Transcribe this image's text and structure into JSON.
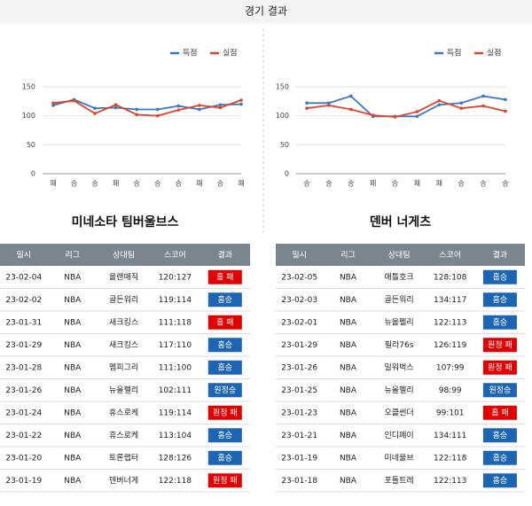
{
  "header": {
    "title": "경기 결과"
  },
  "chart_data": [
    {
      "type": "line",
      "categories": [
        "패",
        "승",
        "승",
        "패",
        "승",
        "승",
        "승",
        "패",
        "승",
        "패"
      ],
      "series": [
        {
          "name": "득점",
          "color": "#3a78c2",
          "values": [
            118,
            128,
            113,
            114,
            111,
            111,
            117,
            111,
            119,
            120
          ]
        },
        {
          "name": "실점",
          "color": "#e0442c",
          "values": [
            122,
            126,
            104,
            119,
            102,
            100,
            110,
            118,
            114,
            127
          ]
        }
      ],
      "ylim": [
        0,
        150
      ],
      "yticks": [
        0,
        50,
        100,
        150
      ],
      "grid": true,
      "legend": "top-right"
    },
    {
      "type": "line",
      "categories": [
        "승",
        "승",
        "승",
        "패",
        "승",
        "패",
        "패",
        "승",
        "승",
        "승"
      ],
      "series": [
        {
          "name": "득점",
          "color": "#3a78c2",
          "values": [
            122,
            122,
            134,
            99,
            99,
            99,
            119,
            122,
            134,
            128
          ]
        },
        {
          "name": "실점",
          "color": "#e0442c",
          "values": [
            113,
            118,
            111,
            101,
            98,
            107,
            126,
            113,
            117,
            108
          ]
        }
      ],
      "ylim": [
        0,
        150
      ],
      "yticks": [
        0,
        50,
        100,
        150
      ],
      "grid": true,
      "legend": "top-right"
    }
  ],
  "teams": [
    {
      "name": "미네소타 팀버울브스",
      "table": {
        "columns": [
          "일시",
          "리그",
          "상대팀",
          "스코어",
          "결과"
        ],
        "rows": [
          [
            "23-02-04",
            "NBA",
            "올랜매직",
            "120:127",
            "홈 패"
          ],
          [
            "23-02-02",
            "NBA",
            "골든워리",
            "119:114",
            "홈승"
          ],
          [
            "23-01-31",
            "NBA",
            "새크킹스",
            "111:118",
            "홈 패"
          ],
          [
            "23-01-29",
            "NBA",
            "새크킹스",
            "117:110",
            "홈승"
          ],
          [
            "23-01-28",
            "NBA",
            "멤피그리",
            "111:100",
            "홈승"
          ],
          [
            "23-01-26",
            "NBA",
            "뉴올펠리",
            "102:111",
            "원정승"
          ],
          [
            "23-01-24",
            "NBA",
            "휴스로케",
            "119:114",
            "원정 패"
          ],
          [
            "23-01-22",
            "NBA",
            "휴스로케",
            "113:104",
            "홈승"
          ],
          [
            "23-01-20",
            "NBA",
            "토론랩터",
            "128:126",
            "홈승"
          ],
          [
            "23-01-19",
            "NBA",
            "덴버너게",
            "122:118",
            "원정 패"
          ]
        ],
        "result_colors": [
          "#e00000",
          "#1c64b4",
          "#e00000",
          "#1c64b4",
          "#1c64b4",
          "#1c64b4",
          "#e00000",
          "#1c64b4",
          "#1c64b4",
          "#e00000"
        ]
      }
    },
    {
      "name": "덴버 너게츠",
      "table": {
        "columns": [
          "일시",
          "리그",
          "상대팀",
          "스코어",
          "결과"
        ],
        "rows": [
          [
            "23-02-05",
            "NBA",
            "애틀호크",
            "128:108",
            "홈승"
          ],
          [
            "23-02-03",
            "NBA",
            "골든워리",
            "134:117",
            "홈승"
          ],
          [
            "23-02-01",
            "NBA",
            "뉴올펠리",
            "122:113",
            "홈승"
          ],
          [
            "23-01-29",
            "NBA",
            "필라76s",
            "126:119",
            "원정 패"
          ],
          [
            "23-01-26",
            "NBA",
            "밀워벅스",
            "107:99",
            "원정 패"
          ],
          [
            "23-01-25",
            "NBA",
            "뉴올펠리",
            "98:99",
            "원정승"
          ],
          [
            "23-01-23",
            "NBA",
            "오클썬더",
            "99:101",
            "홈 패"
          ],
          [
            "23-01-21",
            "NBA",
            "인디페이",
            "134:111",
            "홈승"
          ],
          [
            "23-01-19",
            "NBA",
            "미네울브",
            "122:118",
            "홈승"
          ],
          [
            "23-01-18",
            "NBA",
            "포틀트레",
            "122:113",
            "홈승"
          ]
        ],
        "result_colors": [
          "#1c64b4",
          "#1c64b4",
          "#1c64b4",
          "#e00000",
          "#e00000",
          "#1c64b4",
          "#e00000",
          "#1c64b4",
          "#1c64b4",
          "#1c64b4"
        ]
      }
    }
  ]
}
